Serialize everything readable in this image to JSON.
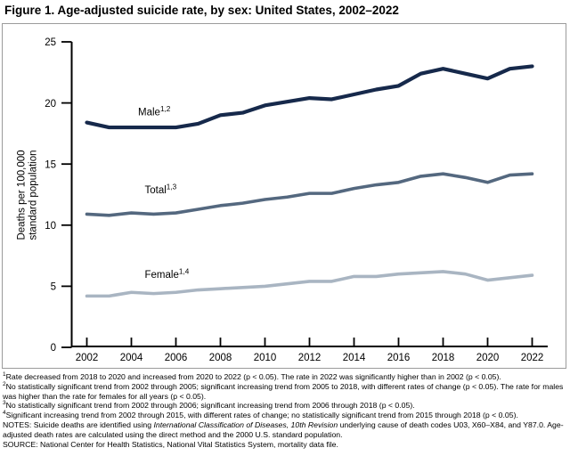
{
  "title": "Figure 1. Age-adjusted suicide rate, by sex: United States, 2002–2022",
  "chart_data": {
    "type": "line",
    "title": "Age-adjusted suicide rate, by sex: United States, 2002–2022",
    "x": [
      2002,
      2003,
      2004,
      2005,
      2006,
      2007,
      2008,
      2009,
      2010,
      2011,
      2012,
      2013,
      2014,
      2015,
      2016,
      2017,
      2018,
      2019,
      2020,
      2021,
      2022
    ],
    "series": [
      {
        "name": "Male",
        "color": "#16294b",
        "width": 4.2,
        "values": [
          18.4,
          18.0,
          18.0,
          18.0,
          18.0,
          18.3,
          19.0,
          19.2,
          19.8,
          20.1,
          20.4,
          20.3,
          20.7,
          21.1,
          21.4,
          22.4,
          22.8,
          22.4,
          22.0,
          22.8,
          23.0
        ]
      },
      {
        "name": "Total",
        "color": "#54687f",
        "width": 3.6,
        "values": [
          10.9,
          10.8,
          11.0,
          10.9,
          11.0,
          11.3,
          11.6,
          11.8,
          12.1,
          12.3,
          12.6,
          12.6,
          13.0,
          13.3,
          13.5,
          14.0,
          14.2,
          13.9,
          13.5,
          14.1,
          14.2
        ]
      },
      {
        "name": "Female",
        "color": "#a9b5c2",
        "width": 3.6,
        "values": [
          4.2,
          4.2,
          4.5,
          4.4,
          4.5,
          4.7,
          4.8,
          4.9,
          5.0,
          5.2,
          5.4,
          5.4,
          5.8,
          5.8,
          6.0,
          6.1,
          6.2,
          6.0,
          5.5,
          5.7,
          5.9
        ]
      }
    ],
    "annotations": [
      {
        "text": "Male",
        "sup": "1,2",
        "year": 2004.3,
        "value": 19.0
      },
      {
        "text": "Total",
        "sup": "1,3",
        "year": 2004.6,
        "value": 12.6
      },
      {
        "text": "Female",
        "sup": "1,4",
        "year": 2004.6,
        "value": 5.7
      }
    ],
    "ylabel_line1": "Deaths per 100,000",
    "ylabel_line2": "standard population",
    "yticks": [
      0,
      5,
      10,
      15,
      20,
      25
    ],
    "xticks": [
      2002,
      2004,
      2006,
      2008,
      2010,
      2012,
      2014,
      2016,
      2018,
      2020,
      2022
    ],
    "ylim": [
      0,
      25
    ],
    "grid": "off",
    "legend": "inline-labels"
  },
  "footnotes": [
    {
      "sup": "1",
      "text": "Rate decreased from 2018 to 2020 and increased from 2020 to 2022 (p < 0.05). The rate in 2022 was significantly higher than in 2002 (p < 0.05)."
    },
    {
      "sup": "2",
      "text": "No statistically significant trend from 2002 through 2005; significant increasing trend from 2005 to 2018, with different rates of change (p < 0.05). The rate for males was higher than the rate for females for all years (p < 0.05)."
    },
    {
      "sup": "3",
      "text": "No statistically significant trend from 2002 through 2006; significant increasing trend from 2006 through 2018 (p < 0.05)."
    },
    {
      "sup": "4",
      "text": "Significant increasing trend from 2002 through 2015, with different rates of change; no statistically significant trend from 2015 through 2018 (p < 0.05)."
    }
  ],
  "notes": {
    "prefix": "NOTES: Suicide deaths are identified using ",
    "italic": "International Classification of Diseases, 10th Revision",
    "suffix": " underlying cause of death codes U03, X60–X84, and Y87.0. Age-adjusted death rates are calculated using the direct method and the 2000 U.S. standard population."
  },
  "source": "SOURCE: National Center for Health Statistics, National Vital Statistics System, mortality data file."
}
